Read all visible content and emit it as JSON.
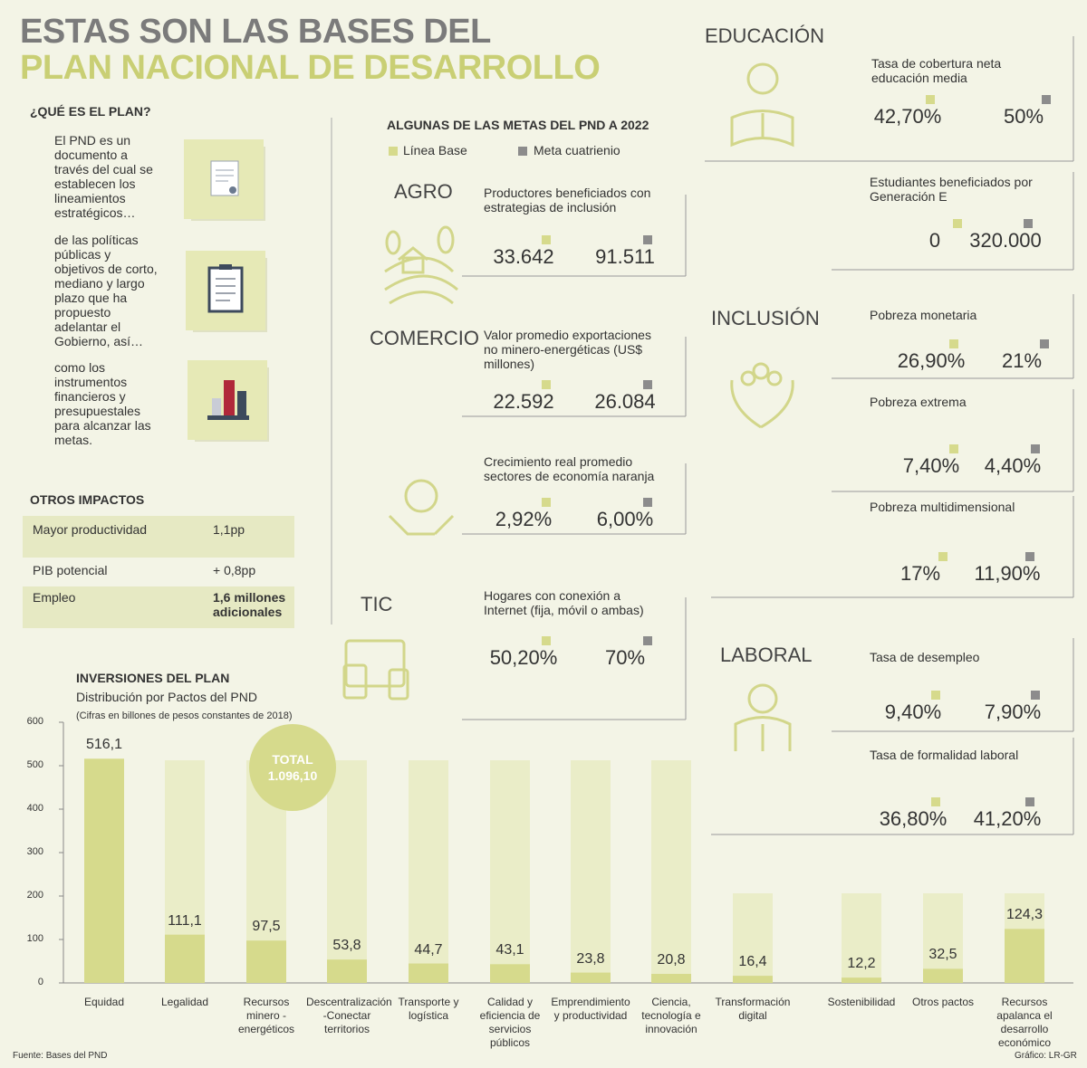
{
  "header": {
    "line1": "ESTAS SON LAS BASES DEL",
    "line2": "PLAN NACIONAL DE DESARROLLO"
  },
  "plan": {
    "title": "¿QUÉ ES EL PLAN?",
    "paragraphs": [
      "El PND es un documento a través del cual se establecen los lineamientos estratégicos…",
      "de las políticas públicas y objetivos de corto, mediano y largo plazo que ha propuesto adelantar el Gobierno, así…",
      "como los instrumentos financieros y presupuestales para alcanzar las metas."
    ]
  },
  "impacts": {
    "title": "OTROS IMPACTOS",
    "rows": [
      [
        "Mayor productividad",
        "1,1pp"
      ],
      [
        "PIB potencial",
        "+ 0,8pp"
      ],
      [
        "Empleo",
        "1,6 millones adicionales"
      ]
    ]
  },
  "goals": {
    "title": "ALGUNAS DE LAS METAS DEL PND A 2022",
    "legend": [
      "Línea Base",
      "Meta cuatrienio"
    ],
    "sectors": [
      {
        "name": "AGRO",
        "items": [
          {
            "label": "Productores beneficiados con estrategias de inclusión",
            "base": "33.642",
            "goal": "91.511"
          }
        ]
      },
      {
        "name": "COMERCIO",
        "items": [
          {
            "label": "Valor promedio exportaciones no minero-energéticas (US$ millones)",
            "base": "22.592",
            "goal": "26.084"
          },
          {
            "label": "Crecimiento real promedio sectores de economía naranja",
            "base": "2,92%",
            "goal": "6,00%"
          }
        ]
      },
      {
        "name": "TIC",
        "items": [
          {
            "label": "Hogares con conexión a Internet (fija, móvil o ambas)",
            "base": "50,20%",
            "goal": "70%"
          }
        ]
      },
      {
        "name": "EDUCACIÓN",
        "items": [
          {
            "label": "Tasa de cobertura neta educación media",
            "base": "42,70%",
            "goal": "50%"
          },
          {
            "label": "Estudiantes beneficiados por Generación E",
            "base": "0",
            "goal": "320.000"
          }
        ]
      },
      {
        "name": "INCLUSIÓN",
        "items": [
          {
            "label": "Pobreza monetaria",
            "base": "26,90%",
            "goal": "21%"
          },
          {
            "label": "Pobreza extrema",
            "base": "7,40%",
            "goal": "4,40%"
          },
          {
            "label": "Pobreza multidimensional",
            "base": "17%",
            "goal": "11,90%"
          }
        ]
      },
      {
        "name": "LABORAL",
        "items": [
          {
            "label": "Tasa de desempleo",
            "base": "9,40%",
            "goal": "7,90%"
          },
          {
            "label": "Tasa de formalidad laboral",
            "base": "36,80%",
            "goal": "41,20%"
          }
        ]
      }
    ]
  },
  "chart_data": {
    "type": "bar",
    "title": "INVERSIONES DEL PLAN",
    "subtitle": "Distribución por Pactos del PND",
    "note": "(Cifras en billones de pesos constantes de 2018)",
    "categories": [
      "Equidad",
      "Legalidad",
      "Recursos minero -energéticos",
      "Descentralización -Conectar territorios",
      "Transporte y logística",
      "Calidad y eficiencia de servicios públicos",
      "Emprendimiento y productividad",
      "Ciencia, tecnología e innovación",
      "Transformación digital",
      "Sostenibilidad",
      "Otros pactos",
      "Recursos apalanca el desarrollo económico"
    ],
    "values": [
      516.1,
      111.1,
      97.5,
      53.8,
      44.7,
      43.1,
      23.8,
      20.8,
      16.4,
      12.2,
      32.5,
      124.3
    ],
    "value_labels": [
      "516,1",
      "111,1",
      "97,5",
      "53,8",
      "44,7",
      "43,1",
      "23,8",
      "20,8",
      "16,4",
      "12,2",
      "32,5",
      "124,3"
    ],
    "color": "#d6da8c",
    "ylim": [
      0,
      600
    ],
    "yticks": [
      0,
      100,
      200,
      300,
      400,
      500,
      600
    ],
    "grid": false,
    "annotation": {
      "label": "TOTAL",
      "value": "1.096,10"
    }
  },
  "source": "Fuente: Bases del PND",
  "credit": "Gráfico: LR-GR"
}
